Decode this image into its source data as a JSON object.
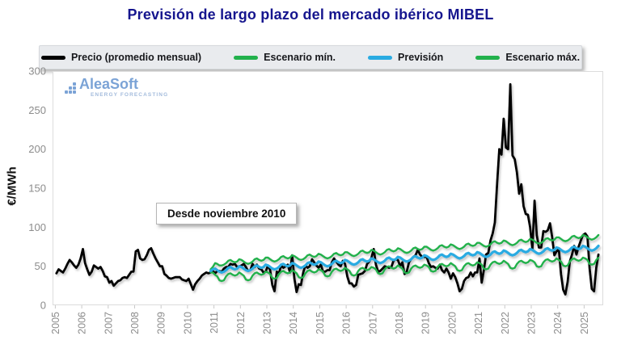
{
  "title": "Previsión de largo plazo del mercado ibérico MIBEL",
  "logo": {
    "name": "AleaSoft",
    "tagline": "ENERGY FORECASTING"
  },
  "annotation": {
    "text": "Desde noviembre 2010"
  },
  "legend": {
    "items": [
      {
        "label": "Precio (promedio mensual)",
        "color": "#000000"
      },
      {
        "label": "Escenario mín.",
        "color": "#22b14c"
      },
      {
        "label": "Previsión",
        "color": "#29abe2"
      },
      {
        "label": "Escenario máx.",
        "color": "#22b14c"
      }
    ]
  },
  "chart_data": {
    "type": "line",
    "title": "Previsión de largo plazo del mercado ibérico MIBEL",
    "xlabel": "",
    "ylabel": "€/MWh",
    "ylim": [
      0,
      300
    ],
    "y_ticks": [
      0,
      50,
      100,
      150,
      200,
      250,
      300
    ],
    "x_ticks": [
      2005,
      2006,
      2007,
      2008,
      2009,
      2010,
      2011,
      2012,
      2013,
      2014,
      2015,
      2016,
      2017,
      2018,
      2019,
      2020,
      2021,
      2022,
      2023,
      2024,
      2025
    ],
    "grid": false,
    "legend_position": "top",
    "units": "EUR/MWh, monthly values",
    "series": [
      {
        "name": "Precio (promedio mensual)",
        "color": "#000000",
        "start_year": 2005,
        "start_month": 1,
        "values": [
          41,
          46,
          44,
          42,
          47,
          53,
          58,
          55,
          51,
          48,
          52,
          60,
          72,
          54,
          46,
          39,
          43,
          51,
          49,
          47,
          49,
          44,
          37,
          36,
          29,
          31,
          25,
          28,
          31,
          32,
          35,
          36,
          35,
          39,
          43,
          43,
          69,
          71,
          60,
          58,
          59,
          64,
          71,
          73,
          66,
          60,
          55,
          50,
          50,
          40,
          38,
          35,
          34,
          35,
          36,
          36,
          36,
          33,
          32,
          31,
          34,
          27,
          20,
          27,
          31,
          34,
          38,
          40,
          42,
          41,
          42,
          44,
          41,
          44,
          44,
          43,
          47,
          49,
          49,
          53,
          52,
          53,
          49,
          50,
          51,
          53,
          49,
          44,
          45,
          53,
          49,
          52,
          47,
          46,
          42,
          43,
          51,
          45,
          26,
          18,
          43,
          41,
          51,
          48,
          50,
          52,
          42,
          64,
          34,
          17,
          27,
          26,
          42,
          51,
          48,
          50,
          59,
          55,
          51,
          48,
          52,
          43,
          43,
          45,
          45,
          55,
          60,
          56,
          52,
          50,
          57,
          53,
          37,
          28,
          28,
          24,
          26,
          39,
          40,
          41,
          44,
          53,
          56,
          61,
          72,
          52,
          43,
          44,
          47,
          50,
          49,
          48,
          49,
          57,
          59,
          58,
          50,
          55,
          40,
          43,
          55,
          59,
          62,
          64,
          71,
          65,
          62,
          62,
          62,
          54,
          49,
          50,
          48,
          47,
          52,
          45,
          42,
          47,
          42,
          34,
          41,
          36,
          28,
          18,
          21,
          31,
          35,
          36,
          42,
          37,
          42,
          42,
          60,
          29,
          45,
          65,
          67,
          83,
          92,
          106,
          156,
          200,
          193,
          239,
          202,
          200,
          283,
          192,
          187,
          170,
          143,
          155,
          127,
          117,
          116,
          100,
          72,
          134,
          90,
          74,
          74,
          95,
          94,
          96,
          105,
          87,
          64,
          69,
          72,
          40,
          20,
          14,
          30,
          56,
          65,
          76,
          65,
          75,
          83,
          90,
          92,
          88,
          47,
          21,
          18,
          48,
          65
        ]
      },
      {
        "name": "Escenario máx.",
        "color": "#22b14c",
        "start_year": 2010,
        "start_month": 11,
        "values": [
          46,
          49,
          54,
          53,
          51,
          51,
          52,
          54,
          57,
          58,
          56,
          55,
          56,
          59,
          58,
          56,
          54,
          53,
          54,
          56,
          59,
          60,
          58,
          57,
          58,
          61,
          61,
          59,
          57,
          56,
          57,
          59,
          62,
          63,
          61,
          60,
          61,
          64,
          63,
          61,
          59,
          58,
          59,
          61,
          64,
          65,
          63,
          62,
          63,
          66,
          65,
          63,
          61,
          60,
          61,
          63,
          66,
          67,
          65,
          64,
          65,
          68,
          68,
          66,
          64,
          63,
          64,
          66,
          69,
          70,
          68,
          67,
          68,
          71,
          70,
          68,
          66,
          65,
          66,
          68,
          71,
          72,
          70,
          69,
          70,
          73,
          72,
          70,
          68,
          67,
          68,
          70,
          73,
          74,
          72,
          71,
          72,
          75,
          75,
          73,
          71,
          70,
          71,
          73,
          76,
          77,
          75,
          74,
          75,
          78,
          77,
          75,
          73,
          72,
          73,
          75,
          78,
          79,
          77,
          76,
          77,
          80,
          80,
          78,
          76,
          75,
          76,
          78,
          81,
          82,
          80,
          79,
          80,
          83,
          82,
          80,
          78,
          77,
          78,
          80,
          83,
          84,
          82,
          81,
          82,
          85,
          84,
          82,
          80,
          79,
          80,
          82,
          85,
          86,
          84,
          83,
          84,
          87,
          87,
          85,
          83,
          82,
          83,
          85,
          88,
          89,
          87,
          86,
          87,
          90,
          89,
          87,
          85,
          84,
          85,
          87,
          90
        ]
      },
      {
        "name": "Escenario mín.",
        "color": "#22b14c",
        "start_year": 2010,
        "start_month": 11,
        "values": [
          42,
          42,
          39,
          37,
          32,
          31,
          32,
          37,
          40,
          41,
          39,
          38,
          39,
          42,
          40,
          38,
          33,
          32,
          33,
          38,
          41,
          42,
          40,
          39,
          40,
          43,
          42,
          40,
          35,
          34,
          35,
          40,
          43,
          44,
          42,
          41,
          42,
          45,
          43,
          41,
          36,
          35,
          36,
          41,
          44,
          45,
          43,
          42,
          43,
          46,
          45,
          43,
          38,
          37,
          38,
          43,
          46,
          47,
          45,
          44,
          45,
          48,
          46,
          44,
          39,
          38,
          39,
          44,
          47,
          48,
          46,
          45,
          46,
          49,
          48,
          46,
          41,
          40,
          41,
          46,
          49,
          50,
          48,
          47,
          48,
          51,
          49,
          47,
          42,
          41,
          42,
          47,
          50,
          51,
          49,
          48,
          49,
          52,
          51,
          49,
          44,
          43,
          44,
          49,
          52,
          53,
          51,
          50,
          51,
          54,
          52,
          50,
          45,
          44,
          45,
          50,
          53,
          54,
          52,
          51,
          52,
          55,
          54,
          52,
          47,
          46,
          47,
          52,
          55,
          56,
          54,
          53,
          54,
          57,
          55,
          53,
          48,
          47,
          48,
          53,
          56,
          57,
          55,
          54,
          55,
          58,
          57,
          55,
          50,
          49,
          50,
          55,
          58,
          59,
          57,
          56,
          57,
          60,
          58,
          56,
          51,
          50,
          51,
          56,
          59,
          60,
          58,
          57,
          58,
          61,
          60,
          58,
          53,
          52,
          53,
          58,
          61
        ]
      },
      {
        "name": "Previsión",
        "color": "#29abe2",
        "start_year": 2010,
        "start_month": 11,
        "values": [
          44,
          46,
          47,
          45,
          43,
          42,
          43,
          45,
          48,
          49,
          47,
          46,
          47,
          50,
          49,
          47,
          45,
          44,
          45,
          47,
          50,
          51,
          49,
          48,
          49,
          52,
          51,
          49,
          47,
          46,
          47,
          49,
          52,
          53,
          51,
          50,
          51,
          54,
          53,
          51,
          49,
          48,
          49,
          51,
          54,
          55,
          53,
          52,
          53,
          56,
          55,
          53,
          51,
          50,
          51,
          53,
          56,
          57,
          55,
          54,
          55,
          58,
          57,
          55,
          53,
          52,
          53,
          55,
          58,
          59,
          57,
          56,
          57,
          60,
          59,
          57,
          55,
          54,
          55,
          57,
          60,
          61,
          59,
          58,
          59,
          62,
          61,
          59,
          57,
          56,
          57,
          59,
          62,
          63,
          61,
          60,
          61,
          64,
          63,
          61,
          59,
          58,
          59,
          61,
          64,
          65,
          63,
          62,
          63,
          66,
          65,
          63,
          61,
          60,
          61,
          63,
          66,
          67,
          65,
          64,
          65,
          68,
          67,
          65,
          63,
          62,
          63,
          65,
          68,
          69,
          67,
          66,
          67,
          70,
          69,
          67,
          65,
          64,
          65,
          67,
          70,
          71,
          69,
          68,
          69,
          72,
          71,
          69,
          67,
          66,
          67,
          69,
          72,
          73,
          71,
          70,
          71,
          74,
          73,
          71,
          69,
          68,
          69,
          71,
          74,
          75,
          73,
          72,
          73,
          76,
          75,
          73,
          71,
          70,
          71,
          73,
          76
        ]
      }
    ]
  }
}
